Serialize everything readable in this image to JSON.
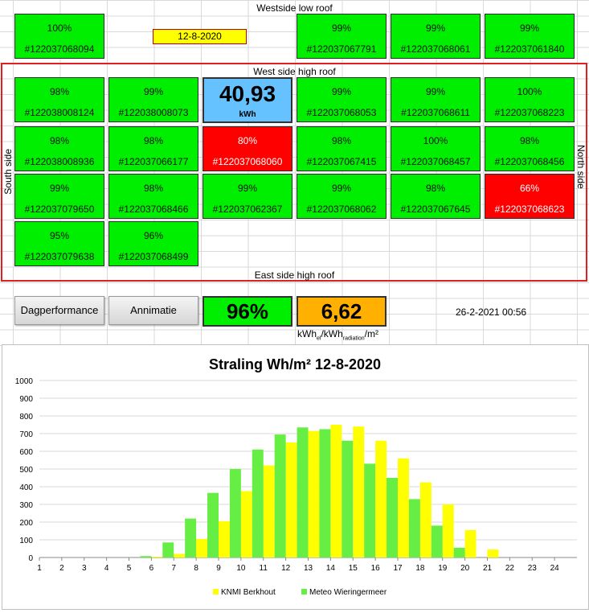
{
  "header": {
    "westside_low_roof": "Westside low roof",
    "date_box": "12-8-2020",
    "west_side_high_roof": "West side high roof",
    "east_side_high_roof": "East side high roof",
    "south_side": "South side",
    "north_side": "North side"
  },
  "colors": {
    "ok": "#00ee00",
    "alert": "#ff0000",
    "kwh_box": "#66c2ff",
    "ratio_box": "#ffb000",
    "series_knmi": "#ffff00",
    "series_meteo": "#66ee44"
  },
  "panels_low": [
    {
      "pct": "100%",
      "sn": "#122037068094",
      "status": "ok"
    },
    {
      "pct": "99%",
      "sn": "#122037067791",
      "status": "ok"
    },
    {
      "pct": "99%",
      "sn": "#122037068061",
      "status": "ok"
    },
    {
      "pct": "99%",
      "sn": "#122037061840",
      "status": "ok"
    }
  ],
  "panels_high": [
    {
      "pct": "98%",
      "sn": "#122038008124",
      "status": "ok"
    },
    {
      "pct": "99%",
      "sn": "#122038008073",
      "status": "ok"
    },
    {
      "pct": "99%",
      "sn": "#122037068053",
      "status": "ok"
    },
    {
      "pct": "99%",
      "sn": "#122037068611",
      "status": "ok"
    },
    {
      "pct": "100%",
      "sn": "#122037068223",
      "status": "ok"
    },
    {
      "pct": "98%",
      "sn": "#122038008936",
      "status": "ok"
    },
    {
      "pct": "98%",
      "sn": "#122037066177",
      "status": "ok"
    },
    {
      "pct": "80%",
      "sn": "#122037068060",
      "status": "alert"
    },
    {
      "pct": "98%",
      "sn": "#122037067415",
      "status": "ok"
    },
    {
      "pct": "100%",
      "sn": "#122037068457",
      "status": "ok"
    },
    {
      "pct": "98%",
      "sn": "#122037068456",
      "status": "ok"
    },
    {
      "pct": "99%",
      "sn": "#122037079650",
      "status": "ok"
    },
    {
      "pct": "98%",
      "sn": "#122037068466",
      "status": "ok"
    },
    {
      "pct": "99%",
      "sn": "#122037062367",
      "status": "ok"
    },
    {
      "pct": "99%",
      "sn": "#122037068062",
      "status": "ok"
    },
    {
      "pct": "98%",
      "sn": "#122037067645",
      "status": "ok"
    },
    {
      "pct": "66%",
      "sn": "#122037068623",
      "status": "alert"
    },
    {
      "pct": "95%",
      "sn": "#122037079638",
      "status": "ok"
    },
    {
      "pct": "96%",
      "sn": "#122037068499",
      "status": "ok"
    }
  ],
  "kwh_box": {
    "value": "40,93",
    "unit": "kWh"
  },
  "buttons": {
    "dagperformance": "Dagperformance",
    "annimatie": "Annimatie"
  },
  "performance": {
    "value": "96%"
  },
  "ratio": {
    "value": "6,62",
    "unit_main": "kWh",
    "unit_sub1": "el",
    "unit_mid": "/kWh",
    "unit_sub2": "radiation",
    "unit_end": "/m²"
  },
  "timestamp": "26-2-2021 00:56",
  "chart_data": {
    "type": "bar",
    "title": "Straling Wh/m²   12-8-2020",
    "categories": [
      "1",
      "2",
      "3",
      "4",
      "5",
      "6",
      "7",
      "8",
      "9",
      "10",
      "11",
      "12",
      "13",
      "14",
      "15",
      "16",
      "17",
      "18",
      "19",
      "20",
      "21",
      "22",
      "23",
      "24"
    ],
    "ylim": [
      0,
      1000
    ],
    "yticks": [
      "0",
      "100",
      "200",
      "300",
      "400",
      "500",
      "600",
      "700",
      "800",
      "900",
      "1000"
    ],
    "series": [
      {
        "name": "KNMI Berkhout",
        "values": [
          0,
          0,
          0,
          0,
          0,
          5,
          20,
          105,
          205,
          375,
          520,
          650,
          715,
          750,
          740,
          660,
          560,
          425,
          300,
          155,
          45,
          0,
          0,
          0
        ]
      },
      {
        "name": "Meteo Wieringermeer",
        "values": [
          0,
          0,
          0,
          0,
          0,
          8,
          85,
          220,
          365,
          500,
          610,
          695,
          735,
          725,
          660,
          530,
          450,
          330,
          180,
          55,
          0,
          0,
          0,
          0
        ]
      }
    ],
    "legend": "bottom",
    "grid": true
  }
}
